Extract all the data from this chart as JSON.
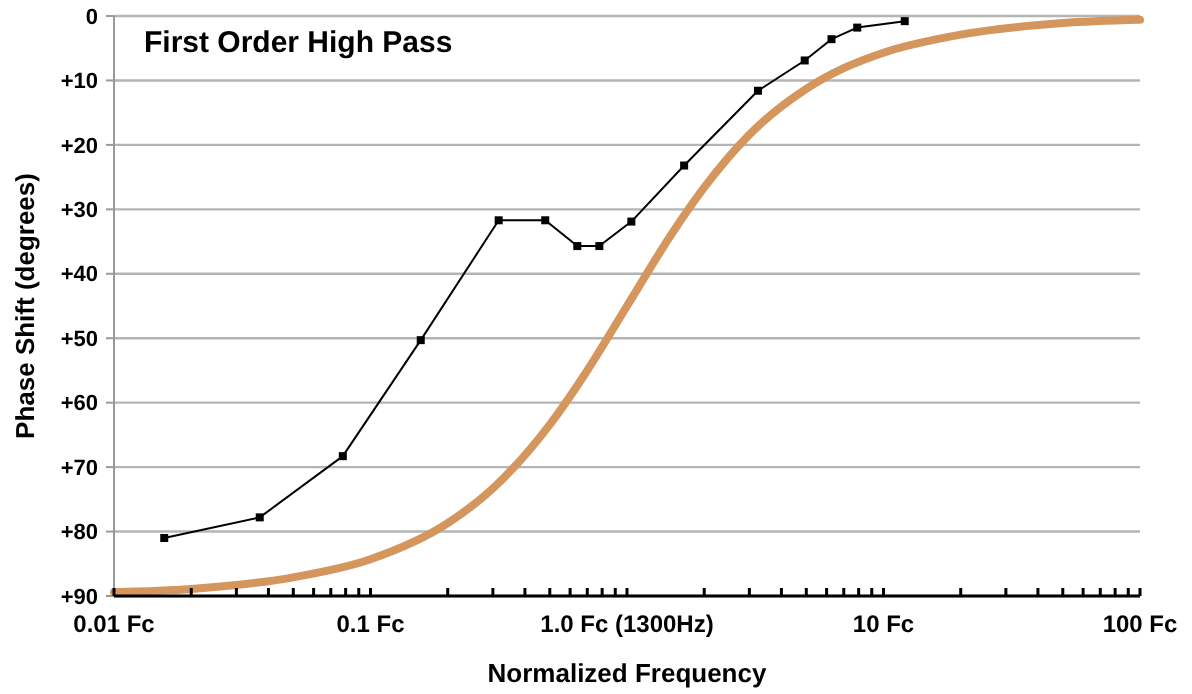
{
  "chart_data": {
    "type": "line",
    "title": "First Order High Pass",
    "xlabel": "Normalized Frequency",
    "ylabel": "Phase Shift (degrees)",
    "log": "x",
    "grid": "y",
    "xlim": [
      0.01,
      100
    ],
    "xticks": [
      {
        "value": 0.01,
        "label": "0.01 Fc"
      },
      {
        "value": 0.02,
        "label": null
      },
      {
        "value": 0.03,
        "label": null
      },
      {
        "value": 0.04,
        "label": null
      },
      {
        "value": 0.05,
        "label": null
      },
      {
        "value": 0.06,
        "label": null
      },
      {
        "value": 0.07,
        "label": null
      },
      {
        "value": 0.08,
        "label": null
      },
      {
        "value": 0.09,
        "label": null
      },
      {
        "value": 0.1,
        "label": "0.1 Fc"
      },
      {
        "value": 0.2,
        "label": null
      },
      {
        "value": 0.3,
        "label": null
      },
      {
        "value": 0.4,
        "label": null
      },
      {
        "value": 0.5,
        "label": null
      },
      {
        "value": 0.6,
        "label": null
      },
      {
        "value": 0.7,
        "label": null
      },
      {
        "value": 0.8,
        "label": null
      },
      {
        "value": 0.9,
        "label": null
      },
      {
        "value": 1,
        "label": "1.0 Fc (1300Hz)"
      },
      {
        "value": 2,
        "label": null
      },
      {
        "value": 3,
        "label": null
      },
      {
        "value": 4,
        "label": null
      },
      {
        "value": 5,
        "label": null
      },
      {
        "value": 6,
        "label": null
      },
      {
        "value": 7,
        "label": null
      },
      {
        "value": 8,
        "label": null
      },
      {
        "value": 9,
        "label": null
      },
      {
        "value": 10,
        "label": "10 Fc"
      },
      {
        "value": 20,
        "label": null
      },
      {
        "value": 30,
        "label": null
      },
      {
        "value": 40,
        "label": null
      },
      {
        "value": 50,
        "label": null
      },
      {
        "value": 60,
        "label": null
      },
      {
        "value": 70,
        "label": null
      },
      {
        "value": 80,
        "label": null
      },
      {
        "value": 90,
        "label": null
      },
      {
        "value": 100,
        "label": "100 Fc"
      }
    ],
    "ylim": [
      90,
      0
    ],
    "yticks": [
      0,
      {
        "value": 10,
        "label": "+10"
      },
      {
        "value": 20,
        "label": "+20"
      },
      {
        "value": 30,
        "label": "+30"
      },
      {
        "value": 40,
        "label": "+40"
      },
      {
        "value": 50,
        "label": "+50"
      },
      {
        "value": 60,
        "label": "+60"
      },
      {
        "value": 70,
        "label": "+70"
      },
      {
        "value": 80,
        "label": "+80"
      },
      {
        "value": 90,
        "label": "+90"
      }
    ],
    "series": [
      {
        "color": "#d4965c",
        "marker": "none",
        "x": [
          0.01,
          0.02,
          0.05,
          0.1,
          0.2,
          0.3,
          0.5,
          0.7,
          1,
          1.5,
          2,
          3,
          5,
          7,
          10,
          20,
          50,
          100
        ],
        "values": [
          89.4,
          88.9,
          87.1,
          84.3,
          78.7,
          73.3,
          63.4,
          55,
          45,
          33.7,
          26.6,
          18.4,
          11.3,
          8.1,
          5.7,
          2.9,
          1.1,
          0.6
        ]
      },
      {
        "color": "#000000",
        "marker": "square",
        "x": [
          0.0157,
          0.037,
          0.078,
          0.157,
          0.316,
          0.48,
          0.64,
          0.78,
          1.04,
          1.67,
          3.24,
          4.93,
          6.27,
          7.9,
          12.1
        ],
        "values": [
          81,
          77.8,
          68.3,
          50.3,
          31.7,
          31.7,
          35.7,
          35.7,
          31.9,
          23.2,
          11.6,
          6.9,
          3.6,
          1.8,
          0.8
        ]
      }
    ]
  }
}
